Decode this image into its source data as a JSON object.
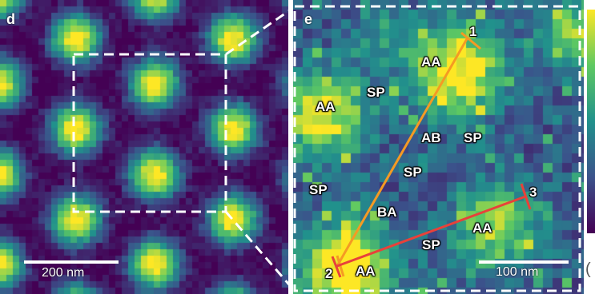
{
  "panels": [
    {
      "id": "d",
      "label": "d",
      "scalebar": "200 nm"
    },
    {
      "id": "e",
      "label": "e",
      "scalebar": "100 nm"
    }
  ],
  "regions": [
    "AA",
    "SP",
    "AA",
    "AB",
    "SP",
    "SP",
    "SP",
    "BA",
    "AA",
    "SP",
    "AA"
  ],
  "points": [
    "1",
    "2",
    "3"
  ],
  "colors": {
    "line_1": "#f59a23",
    "line_2": "#e8413a",
    "box": "#ffffff"
  },
  "colormap": "viridis"
}
